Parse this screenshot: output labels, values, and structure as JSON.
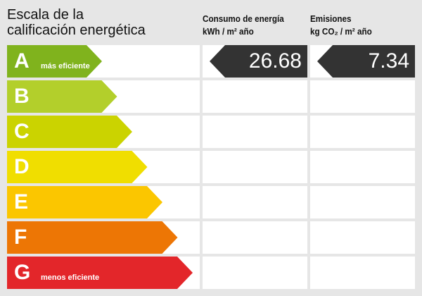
{
  "title_line1": "Escala de la",
  "title_line2": "calificación energética",
  "consumo": {
    "line1": "Consumo de energía",
    "unit": "kWh / m² año",
    "value": "26.68",
    "rating": "A"
  },
  "emisiones": {
    "line1": "Emisiones",
    "unit": "kg CO₂ / m² año",
    "value": "7.34",
    "rating": "A"
  },
  "ratings": [
    {
      "letter": "A",
      "label": "más eficiente",
      "color": "#80b31d"
    },
    {
      "letter": "B",
      "label": "",
      "color": "#b3cf2b"
    },
    {
      "letter": "C",
      "label": "",
      "color": "#cbd300"
    },
    {
      "letter": "D",
      "label": "",
      "color": "#f0de00"
    },
    {
      "letter": "E",
      "label": "",
      "color": "#fbc600"
    },
    {
      "letter": "F",
      "label": "",
      "color": "#ed7605"
    },
    {
      "letter": "G",
      "label": "menos eficiente",
      "color": "#e3262a"
    }
  ],
  "indicator_color": "#333333"
}
